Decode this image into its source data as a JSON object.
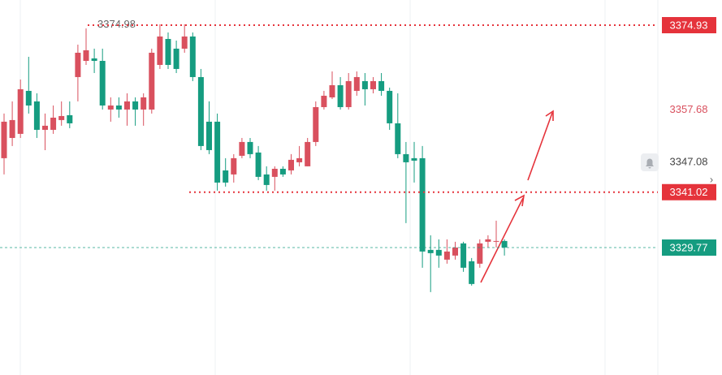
{
  "chart_data": {
    "type": "candlestick",
    "open": [
      3347.92,
      3352.03,
      3352.86,
      3361.59,
      3359.45,
      3353.68,
      3353.68,
      3355.66,
      3356.65,
      3364.39,
      3367.68,
      3368.18,
      3367.68,
      3357.8,
      3358.62,
      3357.8,
      3359.45,
      3357.8,
      3357.8,
      3366.86,
      3372.13,
      3370.16,
      3370.16,
      3372.63,
      3364.39,
      3355.33,
      3355.33,
      3345.44,
      3344.62,
      3348.41,
      3351.21,
      3349.07,
      3344.62,
      3344.13,
      3345.77,
      3345.44,
      3347.09,
      3346.27,
      3351.21,
      3358.29,
      3360.27,
      3362.74,
      3358.29,
      3361.59,
      3363.57,
      3361.92,
      3363.57,
      3361.59,
      3355.0,
      3348.74,
      3347.92,
      3347.92,
      3329.3,
      3329.3,
      3327.32,
      3328.15,
      3330.62,
      3326.99,
      3326.5,
      3330.95,
      3330.95,
      3331.11
    ],
    "high": [
      3356.98,
      3359.45,
      3363.9,
      3368.51,
      3361.09,
      3356.98,
      3358.62,
      3359.45,
      3359.45,
      3370.98,
      3374.27,
      3370.16,
      3370.16,
      3360.27,
      3360.27,
      3361.09,
      3360.27,
      3361.09,
      3370.16,
      3375.1,
      3373.45,
      3371.8,
      3375.1,
      3373.45,
      3366.04,
      3359.45,
      3356.98,
      3347.92,
      3348.74,
      3352.03,
      3352.03,
      3350.39,
      3346.27,
      3346.27,
      3346.27,
      3348.74,
      3350.39,
      3352.03,
      3359.45,
      3361.59,
      3365.54,
      3364.39,
      3365.21,
      3365.54,
      3365.21,
      3364.39,
      3365.21,
      3362.25,
      3361.09,
      3351.21,
      3351.21,
      3350.39,
      3332.27,
      3331.44,
      3331.44,
      3330.95,
      3330.95,
      3327.65,
      3331.44,
      3332.27,
      3335.23,
      3331.44
    ],
    "low": [
      3344.62,
      3350.39,
      3352.03,
      3356.98,
      3352.03,
      3349.56,
      3352.86,
      3354.51,
      3354.01,
      3359.45,
      3366.86,
      3365.21,
      3357.8,
      3355.33,
      3356.15,
      3354.51,
      3354.51,
      3354.51,
      3356.98,
      3366.04,
      3366.04,
      3365.21,
      3369.33,
      3363.57,
      3349.56,
      3348.74,
      3341.33,
      3342.15,
      3342.97,
      3347.92,
      3347.92,
      3343.47,
      3341.33,
      3341.33,
      3344.13,
      3344.62,
      3346.27,
      3346.27,
      3350.39,
      3357.8,
      3359.94,
      3357.8,
      3357.8,
      3360.6,
      3358.62,
      3361.09,
      3360.6,
      3353.68,
      3347.92,
      3334.74,
      3342.97,
      3325.68,
      3320.73,
      3325.68,
      3326.5,
      3327.32,
      3324.85,
      3322.05,
      3325.68,
      3329.79,
      3329.79,
      3328.15
    ],
    "close": [
      3355.33,
      3355.66,
      3361.92,
      3358.62,
      3353.68,
      3354.51,
      3356.15,
      3356.48,
      3355.0,
      3369.33,
      3369.83,
      3367.68,
      3358.62,
      3358.62,
      3357.8,
      3359.45,
      3357.8,
      3360.27,
      3369.33,
      3372.63,
      3366.86,
      3366.04,
      3372.63,
      3364.39,
      3350.39,
      3349.56,
      3342.97,
      3342.97,
      3347.92,
      3351.21,
      3348.74,
      3344.13,
      3342.48,
      3345.77,
      3344.62,
      3347.59,
      3347.92,
      3351.21,
      3358.29,
      3360.6,
      3362.74,
      3358.29,
      3363.57,
      3364.39,
      3361.92,
      3363.57,
      3361.59,
      3355.0,
      3348.74,
      3347.09,
      3347.42,
      3328.97,
      3328.64,
      3328.15,
      3328.97,
      3329.79,
      3325.68,
      3322.38,
      3330.62,
      3331.44,
      3331.11,
      3329.79
    ],
    "up_color": "#d9505e",
    "down_color": "#159c80",
    "ylim": [
      3303.9,
      3380.04
    ],
    "levels": [
      {
        "value": 3374.93,
        "color": "#e5333b"
      },
      {
        "value": 3341.02,
        "color": "#e5333b"
      }
    ],
    "markers": [
      {
        "value": 3357.68,
        "color": "#d9505e"
      },
      {
        "value": 3347.08,
        "color": "#444444"
      }
    ],
    "current_price": {
      "value": 3329.77,
      "color": "#159c80"
    },
    "high_label": 3374.98
  }
}
